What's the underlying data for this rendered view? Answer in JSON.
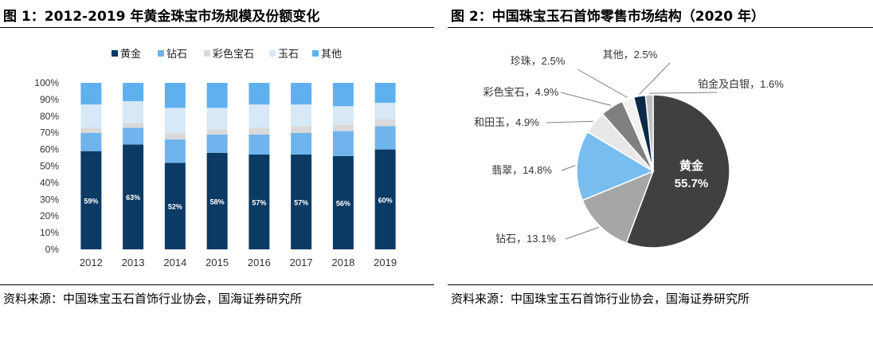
{
  "left": {
    "title": "图 1：2012-2019 年黄金珠宝市场规模及份额变化",
    "source": "资料来源：中国珠宝玉石首饰行业协会，国海证券研究所"
  },
  "right": {
    "title": "图 2：中国珠宝玉石首饰零售市场结构（2020 年）",
    "source": "资料来源：中国珠宝玉石首饰行业协会，国海证券研究所"
  },
  "chart_data": [
    {
      "type": "bar",
      "stacked": true,
      "percent_stacked": true,
      "categories": [
        "2012",
        "2013",
        "2014",
        "2015",
        "2016",
        "2017",
        "2018",
        "2019"
      ],
      "ylim": [
        0,
        100
      ],
      "yticks": [
        "0%",
        "10%",
        "20%",
        "30%",
        "40%",
        "50%",
        "60%",
        "70%",
        "80%",
        "90%",
        "100%"
      ],
      "legend_position": "top",
      "series": [
        {
          "name": "黄金",
          "color": "#0b3a64",
          "values": [
            59,
            63,
            52,
            58,
            57,
            57,
            56,
            60
          ],
          "labels": [
            "59%",
            "63%",
            "52%",
            "58%",
            "57%",
            "57%",
            "56%",
            "60%"
          ]
        },
        {
          "name": "钻石",
          "color": "#6fb4ec",
          "values": [
            11,
            10,
            14,
            11,
            12,
            13,
            15,
            14
          ]
        },
        {
          "name": "彩色宝石",
          "color": "#d9d9d9",
          "values": [
            3,
            3,
            4,
            3,
            4,
            4,
            4,
            4
          ]
        },
        {
          "name": "玉石",
          "color": "#d7e9f7",
          "values": [
            14,
            13,
            15,
            13,
            14,
            13,
            11,
            10
          ]
        },
        {
          "name": "其他",
          "color": "#5fb0ef",
          "values": [
            13,
            11,
            15,
            15,
            13,
            13,
            14,
            12
          ]
        }
      ]
    },
    {
      "type": "pie",
      "slices": [
        {
          "name": "黄金",
          "value": 55.7,
          "label": "黄金",
          "value_label": "55.7%",
          "color": "#404040"
        },
        {
          "name": "钻石",
          "value": 13.1,
          "label": "钻石，13.1%",
          "color": "#a6a6a6"
        },
        {
          "name": "翡翠",
          "value": 14.8,
          "label": "翡翠，14.8%",
          "color": "#78bdf0"
        },
        {
          "name": "和田玉",
          "value": 4.9,
          "label": "和田玉，4.9%",
          "color": "#e8e8e8"
        },
        {
          "name": "彩色宝石",
          "value": 4.9,
          "label": "彩色宝石，4.9%",
          "color": "#808080"
        },
        {
          "name": "珍珠",
          "value": 2.5,
          "label": "珍珠，2.5%",
          "color": "#f2f2f2"
        },
        {
          "name": "其他",
          "value": 2.5,
          "label": "其他，2.5%",
          "color": "#0b2a4a"
        },
        {
          "name": "铂金及白银",
          "value": 1.6,
          "label": "铂金及白银，1.6%",
          "color": "#bfbfbf"
        }
      ]
    }
  ]
}
